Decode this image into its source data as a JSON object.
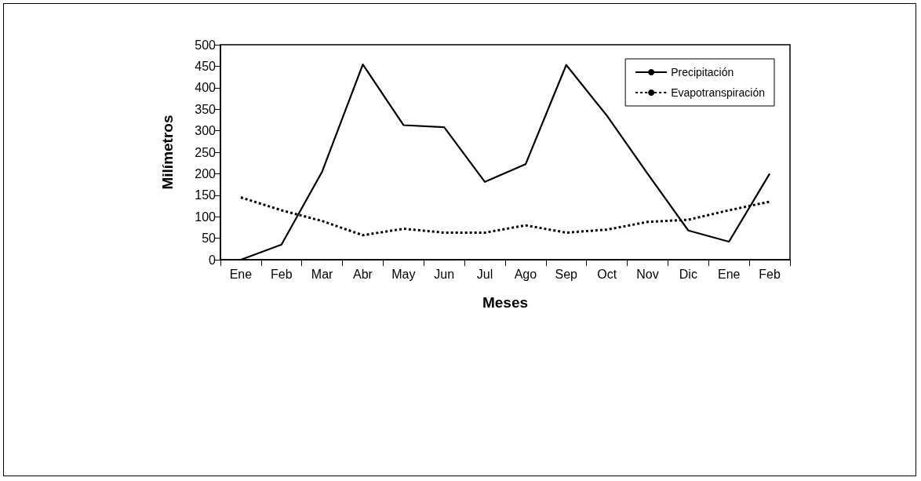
{
  "chart_data": {
    "type": "line",
    "xlabel": "Meses",
    "ylabel": "Milímetros",
    "categories": [
      "Ene",
      "Feb",
      "Mar",
      "Abr",
      "May",
      "Jun",
      "Jul",
      "Ago",
      "Sep",
      "Oct",
      "Nov",
      "Dic",
      "Ene",
      "Feb"
    ],
    "series": [
      {
        "name": "Precipitación",
        "color": "#000000",
        "line_style": "solid",
        "values": [
          0,
          35,
          205,
          454,
          313,
          308,
          181,
          222,
          453,
          335,
          200,
          68,
          42,
          200
        ]
      },
      {
        "name": "Evapotranspiración",
        "color": "#000000",
        "line_style": "dotted",
        "values": [
          145,
          115,
          90,
          57,
          72,
          63,
          63,
          80,
          63,
          70,
          88,
          93,
          115,
          135
        ]
      }
    ],
    "ylim": [
      0,
      500
    ],
    "yticks": [
      0,
      50,
      100,
      150,
      200,
      250,
      300,
      350,
      400,
      450,
      500
    ],
    "grid": false,
    "legend": "top right",
    "marker": "none"
  }
}
